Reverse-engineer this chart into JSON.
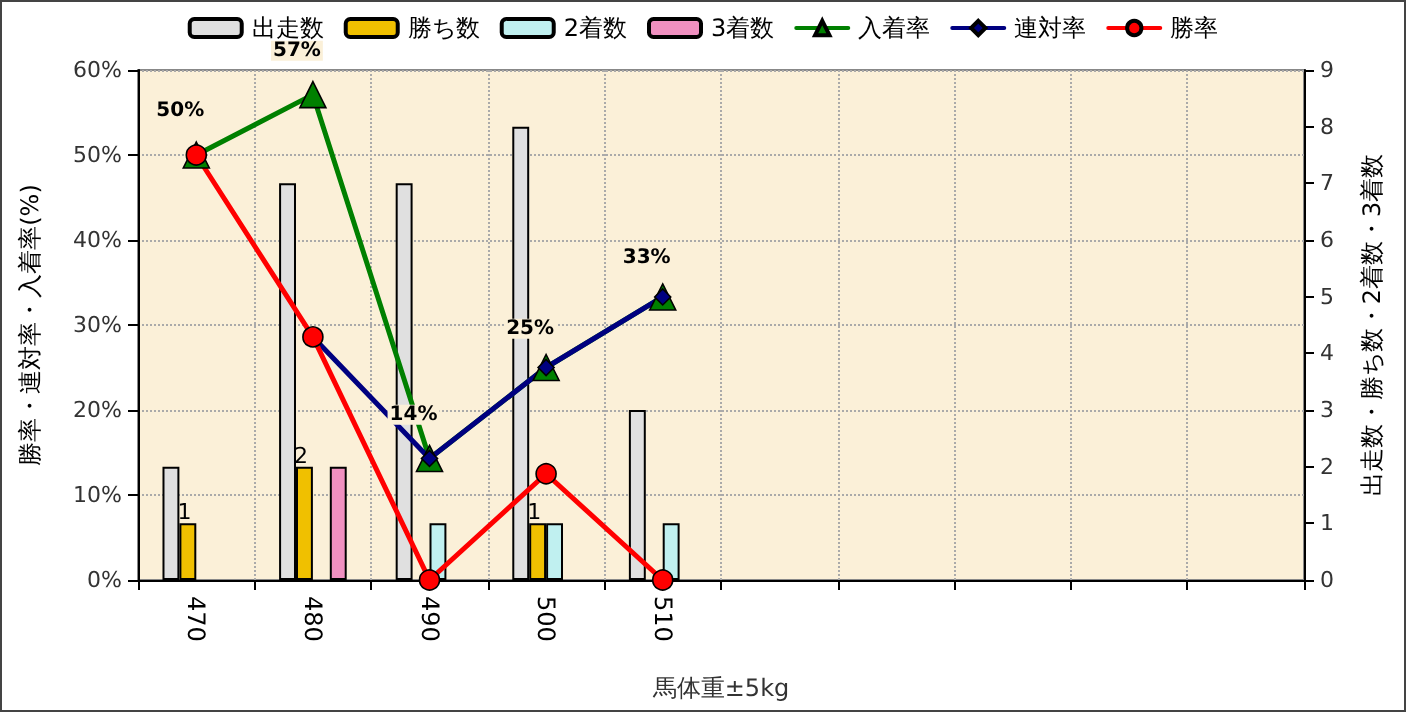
{
  "chart_data": {
    "type": "bar",
    "xlabel": "馬体重±5kg",
    "ylabel": "勝率・連対率・入着率(%)",
    "y2label": "出走数・勝ち数・2着数・3着数",
    "categories": [
      "470",
      "480",
      "490",
      "500",
      "510",
      null,
      null,
      null,
      null,
      null
    ],
    "series": [
      {
        "name": "出走数",
        "axis": "y2",
        "color": "#e0e0e0",
        "values": [
          2,
          7,
          7,
          8,
          3,
          null,
          null,
          null,
          null,
          null
        ]
      },
      {
        "name": "勝ち数",
        "axis": "y2",
        "color": "#f0c000",
        "values": [
          1,
          2,
          0,
          1,
          0,
          null,
          null,
          null,
          null,
          null
        ],
        "value_labels": [
          "1",
          "2",
          null,
          "1",
          null,
          null,
          null,
          null,
          null,
          null
        ]
      },
      {
        "name": "2着数",
        "axis": "y2",
        "color": "#c0f0f0",
        "values": [
          0,
          0,
          1,
          1,
          1,
          null,
          null,
          null,
          null,
          null
        ]
      },
      {
        "name": "3着数",
        "axis": "y2",
        "color": "#f090c0",
        "values": [
          0,
          2,
          0,
          0,
          0,
          null,
          null,
          null,
          null,
          null
        ]
      },
      {
        "name": "入着率",
        "type": "line",
        "marker": "triangle",
        "color": "#008000",
        "values": [
          50,
          57.1,
          14.3,
          25,
          33.3,
          null,
          null,
          null,
          null,
          null
        ],
        "value_labels": [
          "50%",
          "57%",
          "14%",
          null,
          null,
          null,
          null,
          null,
          null,
          null
        ]
      },
      {
        "name": "連対率",
        "type": "line",
        "marker": "diamond",
        "color": "#000080",
        "values": [
          null,
          28.6,
          14.3,
          25,
          33.3,
          null,
          null,
          null,
          null,
          null
        ],
        "value_labels": [
          null,
          null,
          null,
          "25%",
          "33%",
          null,
          null,
          null,
          null,
          null
        ]
      },
      {
        "name": "勝率",
        "type": "line",
        "marker": "circle",
        "color": "#ff0000",
        "values": [
          50,
          28.6,
          0,
          12.5,
          0,
          null,
          null,
          null,
          null,
          null
        ]
      }
    ],
    "ylim": [
      0,
      60
    ],
    "yticks": [
      {
        "value": 0,
        "label": "0%"
      },
      {
        "value": 10,
        "label": "10%"
      },
      {
        "value": 20,
        "label": "20%"
      },
      {
        "value": 30,
        "label": "30%"
      },
      {
        "value": 40,
        "label": "40%"
      },
      {
        "value": 50,
        "label": "50%"
      },
      {
        "value": 60,
        "label": "60%"
      }
    ],
    "y2lim": [
      0,
      9
    ],
    "y2ticks": [
      0,
      1,
      2,
      3,
      4,
      5,
      6,
      7,
      8,
      9
    ],
    "grid": true,
    "legend": "top"
  }
}
